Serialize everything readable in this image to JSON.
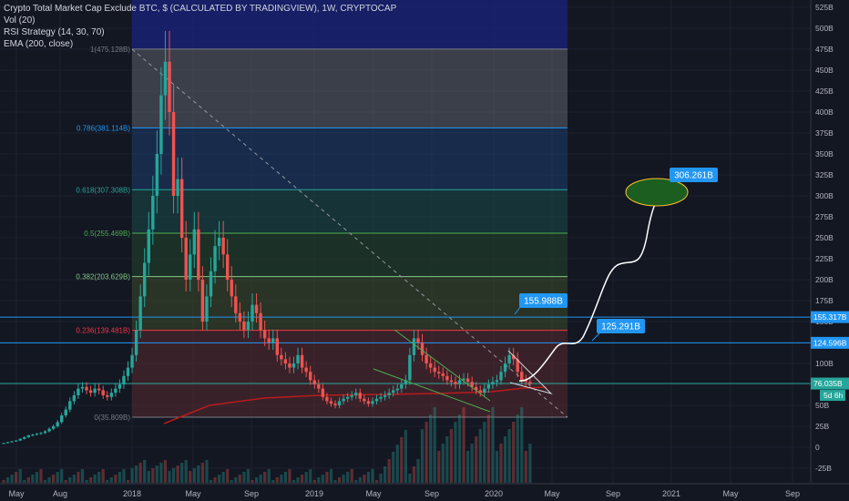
{
  "legend": {
    "title": "Crypto Total Market Cap Exclude BTC, $ (CALCULATED BY TRADINGVIEW), 1W, CRYPTOCAP",
    "vol": "Vol (20)",
    "rsi": "RSI Strategy (14, 30, 70)",
    "ema": "EMA (200, close)"
  },
  "colors": {
    "background": "#131722",
    "up": "#26a69a",
    "down": "#ef5350",
    "ema": "#b71c1c",
    "hline": "#2196f3",
    "label": "#2196f3",
    "price_tag": "#26a69a"
  },
  "y_axis": {
    "ticks": [
      {
        "v": 525,
        "label": "525B"
      },
      {
        "v": 500,
        "label": "500B"
      },
      {
        "v": 475,
        "label": "475B"
      },
      {
        "v": 450,
        "label": "450B"
      },
      {
        "v": 425,
        "label": "425B"
      },
      {
        "v": 400,
        "label": "400B"
      },
      {
        "v": 375,
        "label": "375B"
      },
      {
        "v": 350,
        "label": "350B"
      },
      {
        "v": 325,
        "label": "325B"
      },
      {
        "v": 300,
        "label": "300B"
      },
      {
        "v": 275,
        "label": "275B"
      },
      {
        "v": 250,
        "label": "250B"
      },
      {
        "v": 225,
        "label": "225B"
      },
      {
        "v": 200,
        "label": "200B"
      },
      {
        "v": 175,
        "label": "175B"
      },
      {
        "v": 150,
        "label": "150B"
      },
      {
        "v": 125,
        "label": "125B"
      },
      {
        "v": 100,
        "label": "100B"
      },
      {
        "v": 75,
        "label": "75B"
      },
      {
        "v": 50,
        "label": "50B"
      },
      {
        "v": 25,
        "label": "25B"
      },
      {
        "v": 0,
        "label": "0"
      },
      {
        "v": -25,
        "label": "-25B"
      }
    ]
  },
  "x_axis": {
    "ticks": [
      "May",
      "Aug",
      "2018",
      "May",
      "Sep",
      "2019",
      "May",
      "Sep",
      "2020",
      "May",
      "Sep",
      "2021",
      "May",
      "Sep"
    ]
  },
  "fib": {
    "levels": [
      {
        "ratio": "1",
        "value": 475.128,
        "label": "1(475.128B)",
        "color": "#787b86",
        "fill": "#5d606b"
      },
      {
        "ratio": "0.786",
        "value": 381.114,
        "label": "0.786(381.114B)",
        "color": "#2196f3",
        "fill": "#1e3c6e"
      },
      {
        "ratio": "0.618",
        "value": 307.308,
        "label": "0.618(307.308B)",
        "color": "#26a69a",
        "fill": "#1a4a48"
      },
      {
        "ratio": "0.5",
        "value": 255.469,
        "label": "0.5(255.469B)",
        "color": "#4caf50",
        "fill": "#23452a"
      },
      {
        "ratio": "0.382",
        "value": 203.629,
        "label": "0.382(203.629B)",
        "color": "#81c784",
        "fill": "#3c4a2a"
      },
      {
        "ratio": "0.236",
        "value": 139.481,
        "label": "0.236(139.481B)",
        "color": "#f23645",
        "fill": "#5a2a30"
      },
      {
        "ratio": "0",
        "value": 35.809,
        "label": "0(35.809B)",
        "color": "#787b86",
        "fill": "#3a2228"
      }
    ]
  },
  "hlines": [
    {
      "value": 155.317,
      "label": "155.317B"
    },
    {
      "value": 124.596,
      "label": "124.596B"
    },
    {
      "value": 76.035,
      "label": "76.035B"
    }
  ],
  "price_tag": {
    "value": 76.035,
    "label": "76.035B",
    "sublabel": "5d 6h"
  },
  "callouts": [
    {
      "label": "306.261B",
      "value": 306.261
    },
    {
      "label": "155.988B",
      "value": 155.988
    },
    {
      "label": "125.291B",
      "value": 125.291
    }
  ],
  "chart_data": {
    "type": "candlestick",
    "title": "Crypto Total Market Cap Exclude BTC, $ (CALCULATED BY TRADINGVIEW), 1W, CRYPTOCAP",
    "ylim": [
      -25,
      525
    ],
    "close_series": [
      5,
      6,
      7,
      8,
      10,
      12,
      14,
      15,
      16,
      17,
      19,
      22,
      25,
      30,
      38,
      45,
      55,
      62,
      70,
      72,
      68,
      65,
      70,
      68,
      62,
      60,
      65,
      70,
      75,
      85,
      95,
      110,
      140,
      180,
      220,
      260,
      300,
      350,
      420,
      460,
      400,
      300,
      320,
      250,
      200,
      230,
      260,
      200,
      150,
      180,
      210,
      240,
      250,
      230,
      200,
      180,
      160,
      150,
      140,
      150,
      170,
      160,
      140,
      130,
      125,
      130,
      110,
      105,
      100,
      95,
      100,
      110,
      95,
      90,
      80,
      75,
      70,
      60,
      55,
      52,
      50,
      55,
      58,
      60,
      62,
      65,
      58,
      55,
      52,
      55,
      58,
      60,
      62,
      65,
      68,
      70,
      75,
      80,
      110,
      130,
      125,
      110,
      100,
      95,
      90,
      88,
      85,
      80,
      78,
      75,
      80,
      82,
      78,
      72,
      68,
      65,
      70,
      75,
      78,
      80,
      90,
      100,
      110,
      105,
      90,
      80,
      78,
      76
    ]
  }
}
